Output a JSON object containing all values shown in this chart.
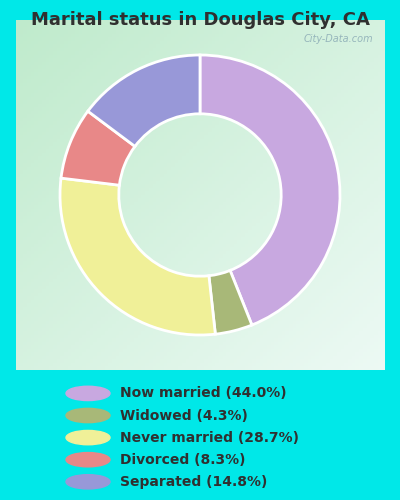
{
  "title": "Marital status in Douglas City, CA",
  "slices": [
    44.0,
    4.3,
    28.7,
    8.3,
    14.8
  ],
  "labels": [
    "Now married (44.0%)",
    "Widowed (4.3%)",
    "Never married (28.7%)",
    "Divorced (8.3%)",
    "Separated (14.8%)"
  ],
  "colors": [
    "#c8a8e0",
    "#a8b878",
    "#f0f098",
    "#e88888",
    "#9898d8"
  ],
  "outer_bg": "#00e8e8",
  "chart_bg_topleft": "#c0e8d0",
  "chart_bg_bottomright": "#e8f0e0",
  "title_fontsize": 13,
  "legend_fontsize": 10,
  "startangle": 90,
  "donut_width": 0.42,
  "title_color": "#303030",
  "legend_text_color": "#303030"
}
